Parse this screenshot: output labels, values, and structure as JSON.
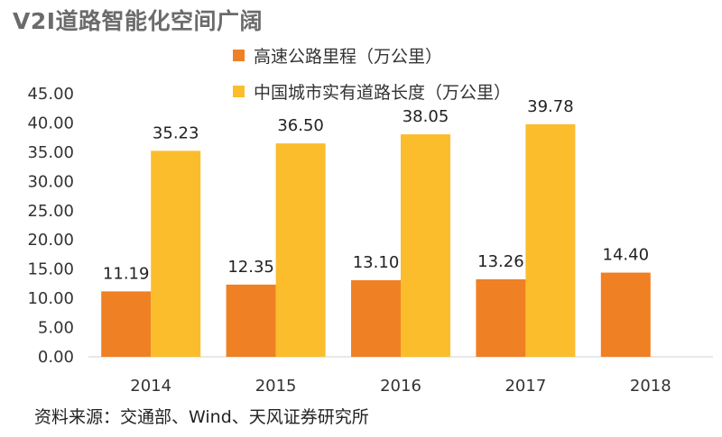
{
  "chart_data": {
    "type": "bar",
    "title": "V2I道路智能化空间广阔",
    "categories": [
      "2014",
      "2015",
      "2016",
      "2017",
      "2018"
    ],
    "series": [
      {
        "name": "高速公路里程（万公里）",
        "color": "#F08024",
        "values": [
          11.19,
          12.35,
          13.1,
          13.26,
          14.4
        ],
        "labels": [
          "11.19",
          "12.35",
          "13.10",
          "13.26",
          "14.40"
        ]
      },
      {
        "name": "中国城市实有道路长度（万公里）",
        "color": "#FBBD2C",
        "values": [
          35.23,
          36.5,
          38.05,
          39.78,
          null
        ],
        "labels": [
          "35.23",
          "36.50",
          "38.05",
          "39.78",
          ""
        ]
      }
    ],
    "ylim": [
      0,
      45
    ],
    "yticks": [
      "0.00",
      "5.00",
      "10.00",
      "15.00",
      "20.00",
      "25.00",
      "30.00",
      "35.00",
      "40.00",
      "45.00"
    ],
    "grid": false,
    "legend": "top"
  },
  "source": "资料来源：交通部、Wind、天风证券研究所"
}
